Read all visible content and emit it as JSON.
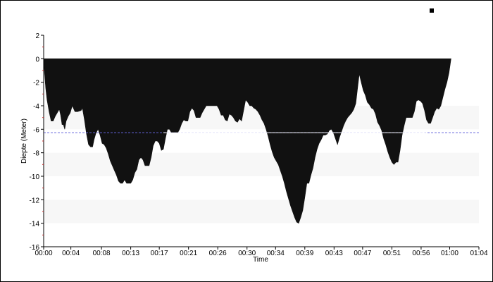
{
  "chart_data": {
    "type": "area",
    "xlabel": "Time",
    "ylabel": "Diepte (Meter)",
    "ylim": [
      -16,
      2
    ],
    "xlim_minutes": [
      0,
      64
    ],
    "y_ticks": [
      {
        "value": 2,
        "label": "2"
      },
      {
        "value": 0,
        "label": "0"
      },
      {
        "value": -2,
        "label": "-2"
      },
      {
        "value": -4,
        "label": "-4"
      },
      {
        "value": -6,
        "label": "-6"
      },
      {
        "value": -8,
        "label": "-8"
      },
      {
        "value": -10,
        "label": "-10"
      },
      {
        "value": -12,
        "label": "-12"
      },
      {
        "value": -14,
        "label": "-14"
      },
      {
        "value": -16,
        "label": "-16"
      }
    ],
    "x_ticks": [
      {
        "value": 0,
        "label": "00:00"
      },
      {
        "value": 4,
        "label": "00:04"
      },
      {
        "value": 8.5,
        "label": "00:08"
      },
      {
        "value": 12.8,
        "label": "00:13"
      },
      {
        "value": 17,
        "label": "00:17"
      },
      {
        "value": 21.3,
        "label": "00:21"
      },
      {
        "value": 25.6,
        "label": "00:26"
      },
      {
        "value": 29.9,
        "label": "00:30"
      },
      {
        "value": 34.1,
        "label": "00:34"
      },
      {
        "value": 38.4,
        "label": "00:39"
      },
      {
        "value": 42.7,
        "label": "00:43"
      },
      {
        "value": 46.9,
        "label": "00:47"
      },
      {
        "value": 51.2,
        "label": "00:51"
      },
      {
        "value": 55.5,
        "label": "00:56"
      },
      {
        "value": 59.7,
        "label": "01:00"
      },
      {
        "value": 64,
        "label": "01:04"
      }
    ],
    "bands": [
      [
        -6,
        -4
      ],
      [
        -10,
        -8
      ],
      [
        -14,
        -12
      ]
    ],
    "band_color": "#f7f7f7",
    "fill_color": "#111111",
    "average_depth": -6.3,
    "average_line_color": "#6666dd",
    "average_line_inner_color": "#ffffff",
    "series": [
      {
        "points": [
          [
            0,
            0
          ],
          [
            0.1,
            -1
          ],
          [
            0.3,
            -2.5
          ],
          [
            0.5,
            -3.5
          ],
          [
            0.8,
            -4.5
          ],
          [
            1.1,
            -5.3
          ],
          [
            1.4,
            -5.3
          ],
          [
            1.7,
            -4.9
          ],
          [
            2.0,
            -4.6
          ],
          [
            2.3,
            -4.3
          ],
          [
            2.5,
            -4.8
          ],
          [
            2.7,
            -5.6
          ],
          [
            2.9,
            -5.6
          ],
          [
            3.1,
            -6.0
          ],
          [
            3.3,
            -5.3
          ],
          [
            3.6,
            -4.9
          ],
          [
            3.9,
            -4.6
          ],
          [
            4.2,
            -4.0
          ],
          [
            4.6,
            -4.5
          ],
          [
            5.0,
            -4.5
          ],
          [
            5.5,
            -4.4
          ],
          [
            5.7,
            -4.2
          ],
          [
            6.0,
            -5.2
          ],
          [
            6.3,
            -6.4
          ],
          [
            6.6,
            -7.3
          ],
          [
            6.9,
            -7.5
          ],
          [
            7.2,
            -7.5
          ],
          [
            7.4,
            -6.9
          ],
          [
            7.7,
            -6.3
          ],
          [
            8.0,
            -6.0
          ],
          [
            8.3,
            -6.5
          ],
          [
            8.6,
            -7.2
          ],
          [
            8.9,
            -7.3
          ],
          [
            9.2,
            -7.6
          ],
          [
            9.5,
            -8.1
          ],
          [
            9.8,
            -8.7
          ],
          [
            10.1,
            -9.1
          ],
          [
            10.4,
            -9.5
          ],
          [
            10.7,
            -9.9
          ],
          [
            11.0,
            -10.4
          ],
          [
            11.3,
            -10.6
          ],
          [
            11.6,
            -10.6
          ],
          [
            11.9,
            -10.3
          ],
          [
            12.2,
            -10.6
          ],
          [
            12.5,
            -10.6
          ],
          [
            12.8,
            -10.6
          ],
          [
            13.1,
            -10.3
          ],
          [
            13.4,
            -9.7
          ],
          [
            13.7,
            -9.4
          ],
          [
            14.0,
            -8.6
          ],
          [
            14.3,
            -8.4
          ],
          [
            14.6,
            -8.6
          ],
          [
            14.9,
            -9.1
          ],
          [
            15.2,
            -9.1
          ],
          [
            15.5,
            -9.1
          ],
          [
            15.8,
            -8.4
          ],
          [
            16.1,
            -7.4
          ],
          [
            16.4,
            -7.0
          ],
          [
            16.7,
            -7.0
          ],
          [
            17.0,
            -7.2
          ],
          [
            17.3,
            -7.8
          ],
          [
            17.6,
            -7.7
          ],
          [
            17.9,
            -6.8
          ],
          [
            18.2,
            -6.0
          ],
          [
            18.5,
            -6.0
          ],
          [
            18.8,
            -6.3
          ],
          [
            19.1,
            -6.3
          ],
          [
            19.4,
            -6.3
          ],
          [
            19.7,
            -6.3
          ],
          [
            20.0,
            -6.0
          ],
          [
            20.3,
            -5.5
          ],
          [
            20.6,
            -5.2
          ],
          [
            20.9,
            -5.3
          ],
          [
            21.2,
            -5.3
          ],
          [
            21.5,
            -4.5
          ],
          [
            21.8,
            -4.2
          ],
          [
            22.1,
            -4.4
          ],
          [
            22.4,
            -5.0
          ],
          [
            22.7,
            -5.0
          ],
          [
            23.0,
            -5.0
          ],
          [
            23.3,
            -4.6
          ],
          [
            23.6,
            -4.3
          ],
          [
            23.9,
            -4.0
          ],
          [
            24.5,
            -4.0
          ],
          [
            25.0,
            -4.0
          ],
          [
            25.5,
            -4.0
          ],
          [
            25.8,
            -4.3
          ],
          [
            26.1,
            -4.8
          ],
          [
            26.4,
            -4.8
          ],
          [
            26.7,
            -5.2
          ],
          [
            27.0,
            -5.3
          ],
          [
            27.3,
            -4.7
          ],
          [
            27.6,
            -4.8
          ],
          [
            27.9,
            -5.0
          ],
          [
            28.2,
            -5.3
          ],
          [
            28.5,
            -5.4
          ],
          [
            28.8,
            -5.1
          ],
          [
            29.1,
            -5.3
          ],
          [
            29.4,
            -4.4
          ],
          [
            29.7,
            -3.5
          ],
          [
            30.0,
            -3.7
          ],
          [
            30.3,
            -4.0
          ],
          [
            30.6,
            -4.0
          ],
          [
            30.9,
            -4.2
          ],
          [
            31.2,
            -4.3
          ],
          [
            31.5,
            -4.5
          ],
          [
            31.8,
            -4.8
          ],
          [
            32.1,
            -5.2
          ],
          [
            32.4,
            -5.5
          ],
          [
            32.7,
            -6.0
          ],
          [
            33.0,
            -6.6
          ],
          [
            33.3,
            -7.3
          ],
          [
            33.6,
            -7.9
          ],
          [
            33.9,
            -8.4
          ],
          [
            34.2,
            -8.7
          ],
          [
            34.5,
            -9.0
          ],
          [
            34.8,
            -9.5
          ],
          [
            35.1,
            -10.0
          ],
          [
            35.4,
            -10.6
          ],
          [
            35.7,
            -11.3
          ],
          [
            36.0,
            -11.9
          ],
          [
            36.3,
            -12.5
          ],
          [
            36.6,
            -13.0
          ],
          [
            36.9,
            -13.5
          ],
          [
            37.2,
            -13.9
          ],
          [
            37.5,
            -14.0
          ],
          [
            37.8,
            -13.5
          ],
          [
            38.1,
            -12.9
          ],
          [
            38.4,
            -11.8
          ],
          [
            38.7,
            -10.6
          ],
          [
            39.0,
            -10.6
          ],
          [
            39.3,
            -9.9
          ],
          [
            39.6,
            -9.3
          ],
          [
            39.9,
            -8.4
          ],
          [
            40.2,
            -7.7
          ],
          [
            40.5,
            -7.2
          ],
          [
            40.8,
            -6.9
          ],
          [
            41.1,
            -6.5
          ],
          [
            41.4,
            -6.5
          ],
          [
            41.7,
            -6.4
          ],
          [
            42.0,
            -6.1
          ],
          [
            42.3,
            -6.0
          ],
          [
            42.6,
            -6.3
          ],
          [
            42.9,
            -6.8
          ],
          [
            43.2,
            -7.3
          ],
          [
            43.5,
            -6.7
          ],
          [
            43.8,
            -6.2
          ],
          [
            44.1,
            -5.7
          ],
          [
            44.4,
            -5.3
          ],
          [
            44.7,
            -5.0
          ],
          [
            45.0,
            -4.8
          ],
          [
            45.3,
            -4.6
          ],
          [
            45.6,
            -4.3
          ],
          [
            45.9,
            -3.8
          ],
          [
            46.2,
            -2.3
          ],
          [
            46.4,
            -1.3
          ],
          [
            46.7,
            -2.0
          ],
          [
            47.0,
            -2.7
          ],
          [
            47.3,
            -3.1
          ],
          [
            47.6,
            -3.7
          ],
          [
            47.9,
            -3.9
          ],
          [
            48.2,
            -4.2
          ],
          [
            48.5,
            -4.3
          ],
          [
            48.8,
            -4.7
          ],
          [
            49.1,
            -5.4
          ],
          [
            49.4,
            -5.7
          ],
          [
            49.7,
            -6.1
          ],
          [
            50.0,
            -6.8
          ],
          [
            50.3,
            -7.3
          ],
          [
            50.6,
            -7.9
          ],
          [
            50.9,
            -8.4
          ],
          [
            51.2,
            -8.8
          ],
          [
            51.5,
            -9.0
          ],
          [
            51.8,
            -8.8
          ],
          [
            52.1,
            -8.8
          ],
          [
            52.4,
            -7.8
          ],
          [
            52.7,
            -6.5
          ],
          [
            53.0,
            -5.7
          ],
          [
            53.3,
            -5.0
          ],
          [
            53.6,
            -5.0
          ],
          [
            53.9,
            -5.0
          ],
          [
            54.2,
            -5.0
          ],
          [
            54.5,
            -4.5
          ],
          [
            54.8,
            -3.6
          ],
          [
            55.1,
            -3.5
          ],
          [
            55.4,
            -3.6
          ],
          [
            55.7,
            -3.8
          ],
          [
            56.0,
            -4.4
          ],
          [
            56.3,
            -5.2
          ],
          [
            56.6,
            -5.5
          ],
          [
            56.9,
            -5.5
          ],
          [
            57.2,
            -5.0
          ],
          [
            57.5,
            -4.5
          ],
          [
            57.8,
            -4.2
          ],
          [
            58.1,
            -4.3
          ],
          [
            58.4,
            -4.0
          ],
          [
            58.7,
            -3.3
          ],
          [
            59.0,
            -2.6
          ],
          [
            59.3,
            -2.0
          ],
          [
            59.6,
            -1.2
          ],
          [
            59.9,
            0
          ]
        ]
      }
    ]
  }
}
